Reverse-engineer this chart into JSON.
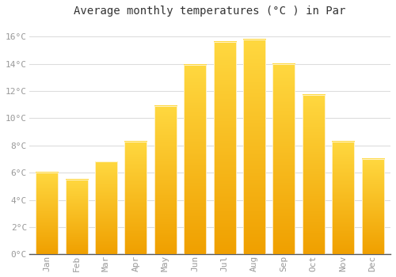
{
  "title": "Average monthly temperatures (°C ) in Par",
  "months": [
    "Jan",
    "Feb",
    "Mar",
    "Apr",
    "May",
    "Jun",
    "Jul",
    "Aug",
    "Sep",
    "Oct",
    "Nov",
    "Dec"
  ],
  "values": [
    6.0,
    5.5,
    6.8,
    8.3,
    10.9,
    13.9,
    15.6,
    15.8,
    14.0,
    11.7,
    8.3,
    7.0
  ],
  "bar_color_bottom": "#F0A000",
  "bar_color_top": "#FFD840",
  "background_color": "#FFFFFF",
  "plot_background": "#FFFFFF",
  "grid_color": "#DDDDDD",
  "ylim": [
    0,
    17
  ],
  "yticks": [
    0,
    2,
    4,
    6,
    8,
    10,
    12,
    14,
    16
  ],
  "title_fontsize": 10,
  "tick_fontsize": 8,
  "tick_color": "#999999",
  "axis_color": "#333333",
  "bar_width": 0.75
}
